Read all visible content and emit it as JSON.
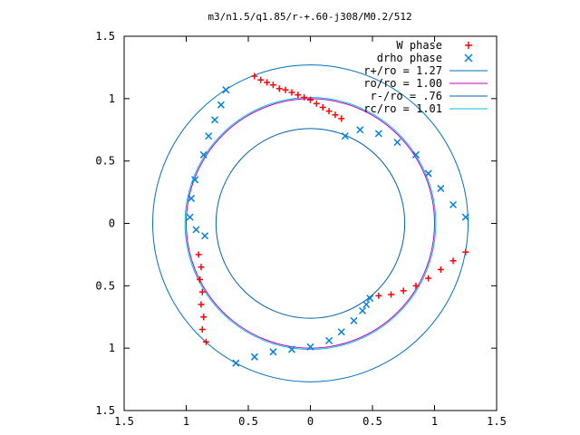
{
  "chart_data": {
    "type": "scatter",
    "title": "m3/n1.5/q1.85/r-+.60-j308/M0.2/512",
    "xlim": [
      -1.5,
      1.5
    ],
    "ylim": [
      -1.5,
      1.5
    ],
    "x_ticks": [
      -1.5,
      -1,
      -0.5,
      0,
      0.5,
      1,
      1.5
    ],
    "y_ticks": [
      -1.5,
      -1,
      -0.5,
      0,
      0.5,
      1,
      1.5
    ],
    "x_tick_labels": [
      "1.5",
      "1",
      "0.5",
      "0",
      "0.5",
      "1",
      "1.5"
    ],
    "y_tick_labels": [
      "1.5",
      "1",
      "0.5",
      "0",
      "0.5",
      "1",
      "1.5"
    ],
    "grid": false,
    "legend_position": "top-right",
    "series": [
      {
        "name": "W phase",
        "kind": "points",
        "marker": "plus",
        "color": "#ff0000",
        "points": [
          [
            -0.45,
            1.18
          ],
          [
            -0.4,
            1.15
          ],
          [
            -0.35,
            1.13
          ],
          [
            -0.3,
            1.11
          ],
          [
            -0.25,
            1.08
          ],
          [
            -0.2,
            1.07
          ],
          [
            -0.15,
            1.05
          ],
          [
            -0.1,
            1.03
          ],
          [
            -0.05,
            1.01
          ],
          [
            0.0,
            0.99
          ],
          [
            0.05,
            0.96
          ],
          [
            0.1,
            0.93
          ],
          [
            0.15,
            0.9
          ],
          [
            0.2,
            0.87
          ],
          [
            0.25,
            0.84
          ],
          [
            -0.9,
            -0.25
          ],
          [
            -0.88,
            -0.35
          ],
          [
            -0.89,
            -0.45
          ],
          [
            -0.87,
            -0.55
          ],
          [
            -0.88,
            -0.65
          ],
          [
            -0.86,
            -0.75
          ],
          [
            -0.87,
            -0.85
          ],
          [
            -0.84,
            -0.95
          ],
          [
            1.25,
            -0.23
          ],
          [
            1.15,
            -0.3
          ],
          [
            1.05,
            -0.37
          ],
          [
            0.95,
            -0.44
          ],
          [
            0.85,
            -0.5
          ],
          [
            0.75,
            -0.54
          ],
          [
            0.65,
            -0.57
          ],
          [
            0.55,
            -0.58
          ]
        ]
      },
      {
        "name": "drho phase",
        "kind": "points",
        "marker": "cross",
        "color": "#0080e0",
        "points": [
          [
            -0.68,
            1.07
          ],
          [
            -0.72,
            0.95
          ],
          [
            -0.77,
            0.83
          ],
          [
            -0.82,
            0.7
          ],
          [
            -0.86,
            0.55
          ],
          [
            -0.93,
            0.35
          ],
          [
            -0.96,
            0.2
          ],
          [
            -0.97,
            0.05
          ],
          [
            -0.92,
            -0.05
          ],
          [
            -0.85,
            -0.1
          ],
          [
            0.28,
            0.7
          ],
          [
            0.4,
            0.75
          ],
          [
            0.55,
            0.72
          ],
          [
            0.7,
            0.65
          ],
          [
            0.85,
            0.55
          ],
          [
            0.95,
            0.4
          ],
          [
            1.05,
            0.28
          ],
          [
            1.15,
            0.15
          ],
          [
            1.25,
            0.05
          ],
          [
            -0.6,
            -1.12
          ],
          [
            -0.45,
            -1.07
          ],
          [
            -0.3,
            -1.03
          ],
          [
            -0.15,
            -1.01
          ],
          [
            0.0,
            -0.99
          ],
          [
            0.15,
            -0.94
          ],
          [
            0.25,
            -0.87
          ],
          [
            0.35,
            -0.78
          ],
          [
            0.42,
            -0.7
          ],
          [
            0.45,
            -0.65
          ],
          [
            0.48,
            -0.6
          ]
        ]
      },
      {
        "name": "r+/ro = 1.27",
        "kind": "circle",
        "radius": 1.27,
        "color": "#0070c0"
      },
      {
        "name": "ro/ro = 1.00",
        "kind": "circle",
        "radius": 1.0,
        "color": "#c000c0"
      },
      {
        "name": "r-/ro = .76",
        "kind": "circle",
        "radius": 0.76,
        "color": "#0060b0"
      },
      {
        "name": "rc/ro = 1.01",
        "kind": "circle",
        "radius": 1.01,
        "color": "#00c0e0"
      }
    ]
  }
}
